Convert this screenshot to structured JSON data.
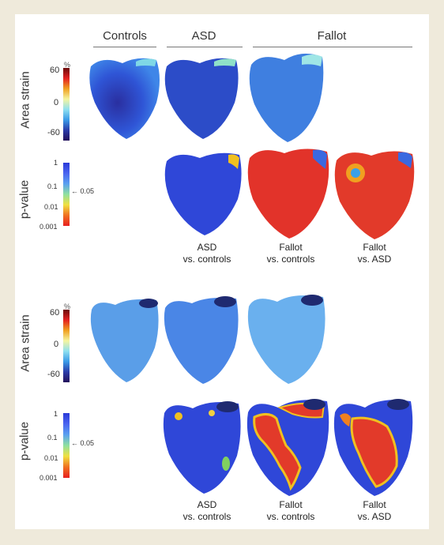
{
  "headers": {
    "controls": "Controls",
    "asd": "ASD",
    "fallot": "Fallot"
  },
  "row_labels": {
    "area_strain": "Area strain",
    "p_value": "p-value"
  },
  "strain_scale": {
    "unit": "%",
    "ticks": [
      "60",
      "0",
      "-60"
    ]
  },
  "p_scale": {
    "ticks": [
      "1",
      "0.1",
      "0.01",
      "0.001"
    ],
    "threshold": "← 0.05"
  },
  "captions": {
    "asd_vs_controls": [
      "ASD",
      "vs. controls"
    ],
    "fallot_vs_controls": [
      "Fallot",
      "vs. controls"
    ],
    "fallot_vs_asd": [
      "Fallot",
      "vs. ASD"
    ]
  },
  "colors": {
    "background": "#efeadb",
    "strain_blue": "#2f4fd6",
    "pvalue_red": "#e23a2a"
  }
}
